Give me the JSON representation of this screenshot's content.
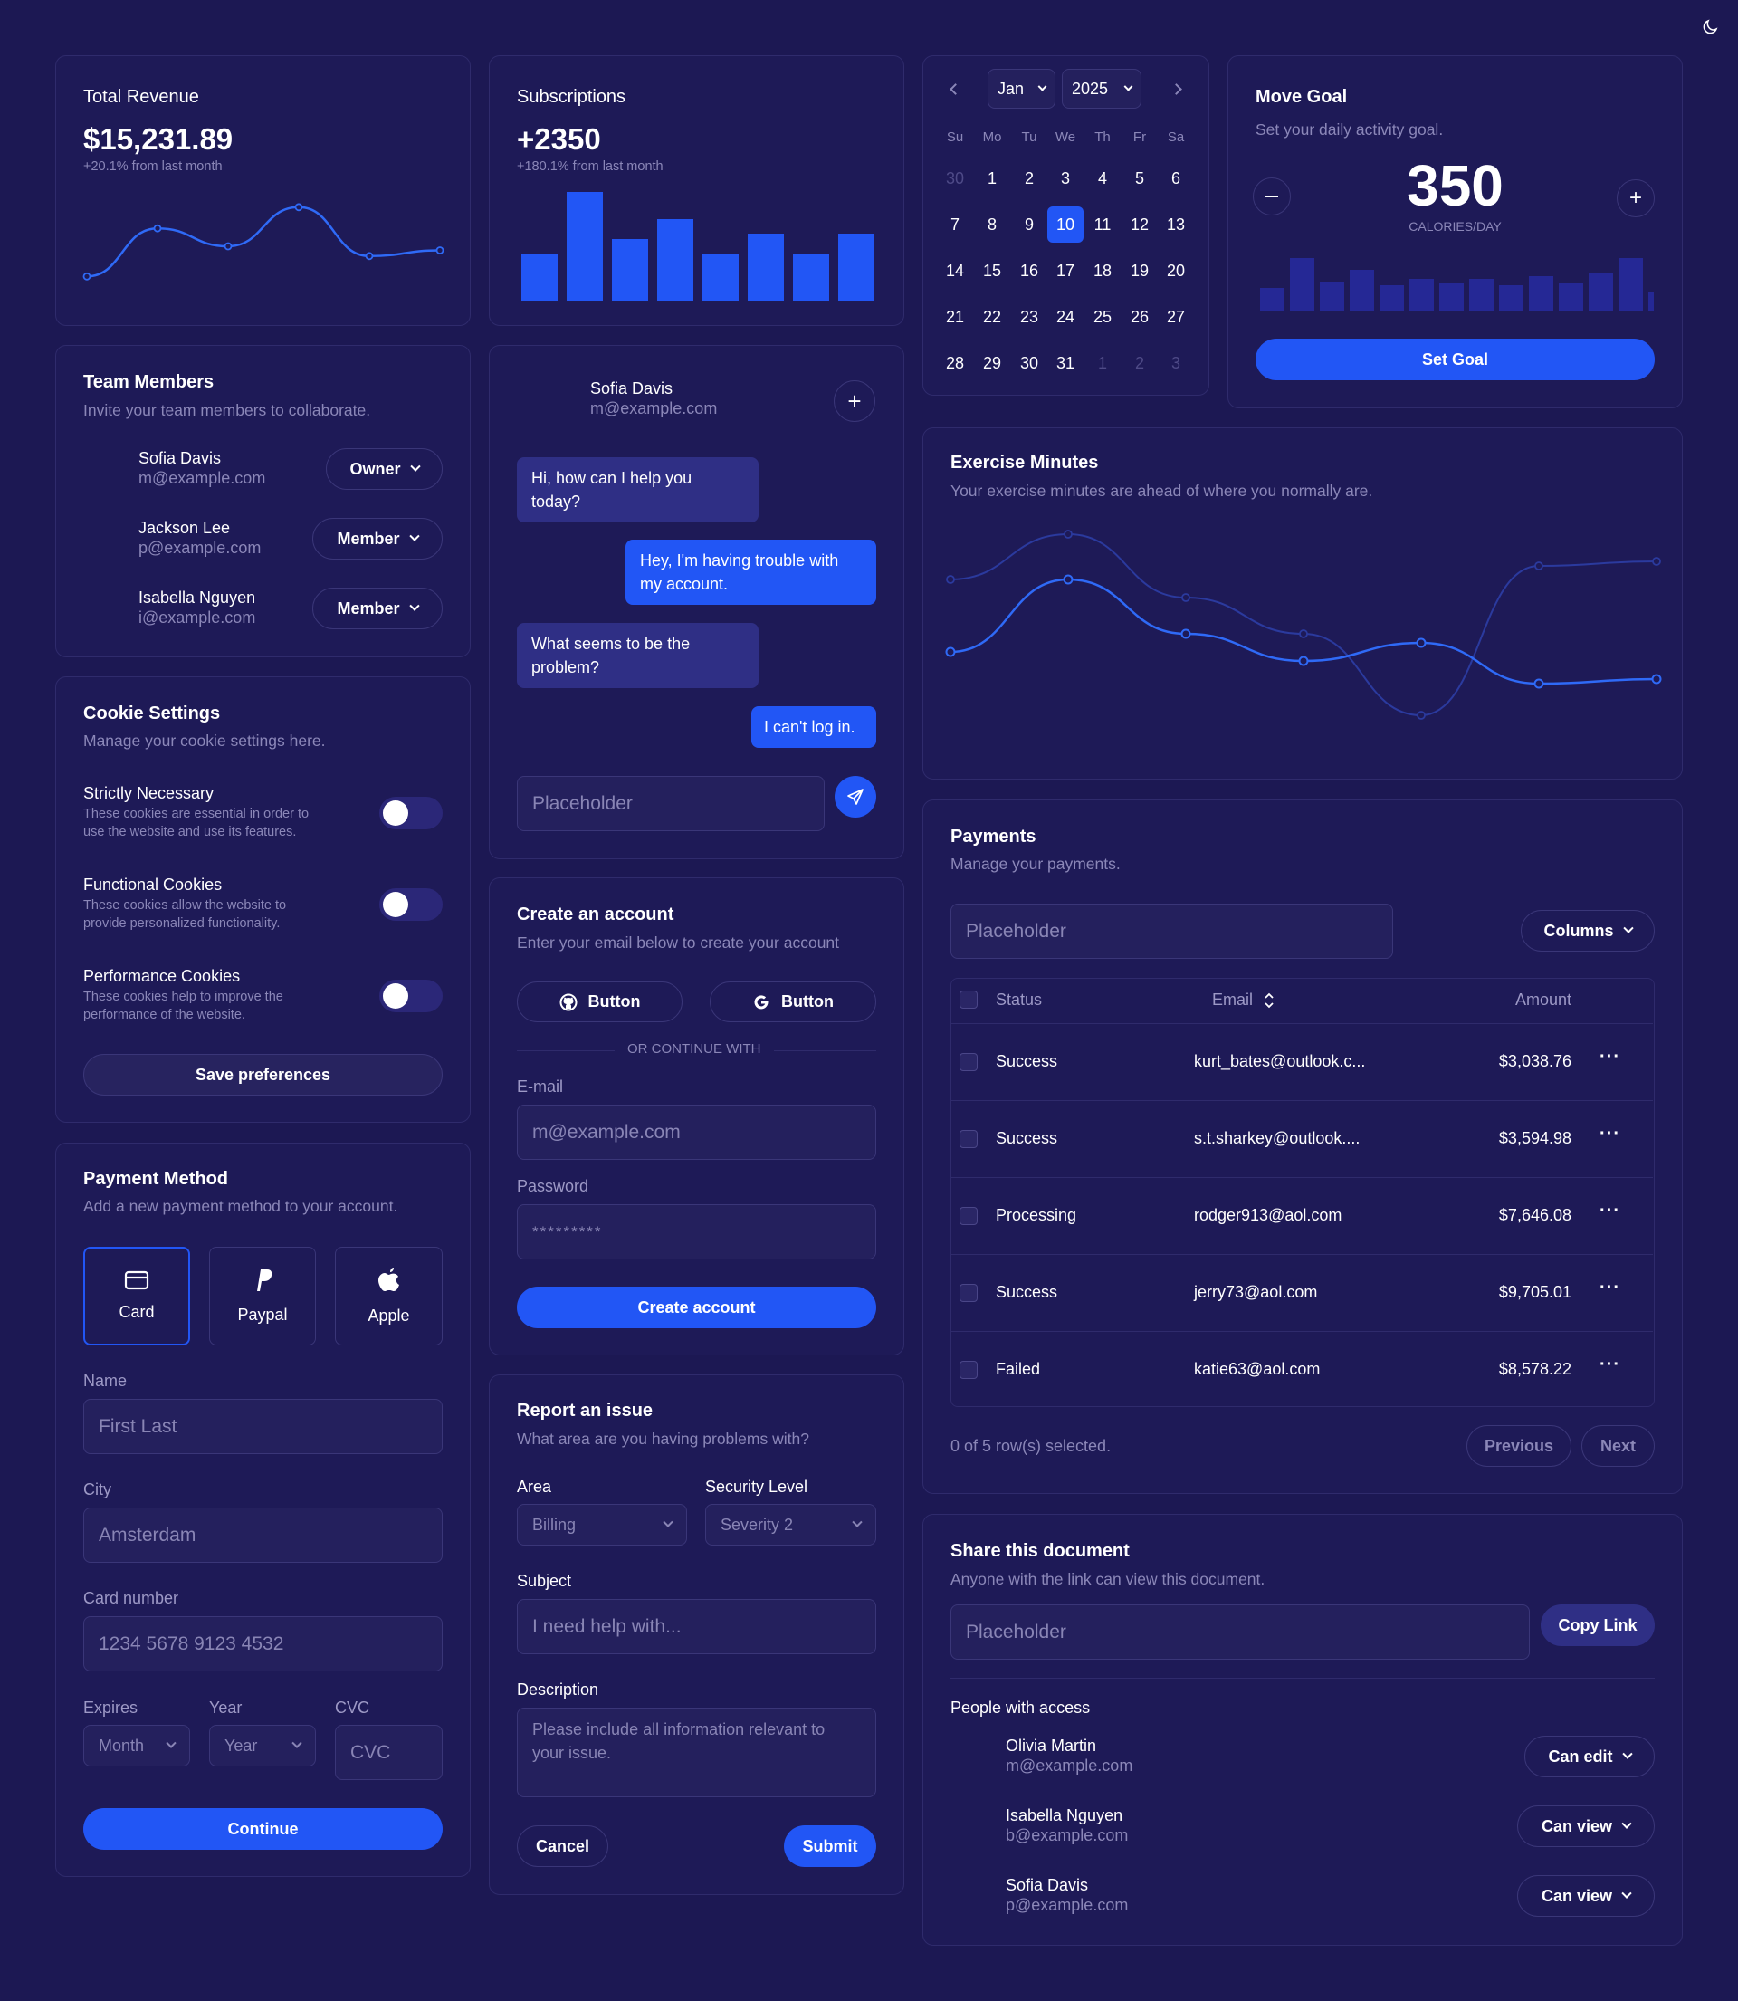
{
  "revenue": {
    "title": "Total Revenue",
    "value": "$15,231.89",
    "change": "+20.1% from last month",
    "line": [
      3,
      62,
      40,
      88,
      28,
      35
    ]
  },
  "subscriptions": {
    "title": "Subscriptions",
    "value": "+2350",
    "change": "+180.1% from last month",
    "bars": [
      52,
      120,
      68,
      90,
      52,
      74,
      52,
      74
    ]
  },
  "calendar": {
    "month": "Jan",
    "year": "2025",
    "weekdays": [
      "Su",
      "Mo",
      "Tu",
      "We",
      "Th",
      "Fr",
      "Sa"
    ],
    "weeks": [
      [
        "30",
        "1",
        "2",
        "3",
        "4",
        "5",
        "6"
      ],
      [
        "7",
        "8",
        "9",
        "10",
        "11",
        "12",
        "13"
      ],
      [
        "14",
        "15",
        "16",
        "17",
        "18",
        "19",
        "20"
      ],
      [
        "21",
        "22",
        "23",
        "24",
        "25",
        "26",
        "27"
      ],
      [
        "28",
        "29",
        "30",
        "31",
        "1",
        "2",
        "3"
      ]
    ],
    "selected": "10"
  },
  "goal": {
    "title": "Move Goal",
    "subtitle": "Set your daily activity goal.",
    "value": "350",
    "unit": "CALORIES/DAY",
    "button": "Set Goal",
    "bars": [
      25,
      58,
      32,
      45,
      28,
      35,
      30,
      35,
      28,
      38,
      30,
      42,
      58,
      20
    ]
  },
  "team": {
    "title": "Team Members",
    "subtitle": "Invite your team members to collaborate.",
    "members": [
      {
        "name": "Sofia Davis",
        "email": "m@example.com",
        "role": "Owner"
      },
      {
        "name": "Jackson Lee",
        "email": "p@example.com",
        "role": "Member"
      },
      {
        "name": "Isabella Nguyen",
        "email": "i@example.com",
        "role": "Member"
      }
    ]
  },
  "chat": {
    "name": "Sofia Davis",
    "email": "m@example.com",
    "messages": [
      {
        "text": "Hi, how can I help you today?",
        "from": "agent"
      },
      {
        "text": "Hey, I'm having trouble with my account.",
        "from": "user"
      },
      {
        "text": "What seems to be the problem?",
        "from": "agent"
      },
      {
        "text": "I can't log in.",
        "from": "user"
      }
    ],
    "placeholder": "Placeholder"
  },
  "exercise": {
    "title": "Exercise Minutes",
    "subtitle": "Your exercise minutes are ahead of where you normally are.",
    "series_a": [
      120,
      200,
      140,
      110,
      130,
      85,
      90
    ],
    "series_b": [
      200,
      250,
      180,
      140,
      50,
      215,
      220
    ]
  },
  "cookies": {
    "title": "Cookie Settings",
    "subtitle": "Manage your cookie settings here.",
    "items": [
      {
        "title": "Strictly Necessary",
        "desc1": "These cookies are essential in order to",
        "desc2": "use the website and use its features."
      },
      {
        "title": "Functional Cookies",
        "desc1": "These cookies allow the website to",
        "desc2": "provide personalized functionality."
      },
      {
        "title": "Performance Cookies",
        "desc1": "These cookies help to improve the",
        "desc2": "performance of the website."
      }
    ],
    "button": "Save preferences"
  },
  "account": {
    "title": "Create an account",
    "subtitle": "Enter your email below to create your account",
    "btn1": "Button",
    "btn2": "Button",
    "divider": "OR CONTINUE WITH",
    "email_label": "E-mail",
    "email_ph": "m@example.com",
    "pw_label": "Password",
    "pw_value": "*********",
    "button": "Create account"
  },
  "payments": {
    "title": "Payments",
    "subtitle": "Manage your payments.",
    "search_ph": "Placeholder",
    "columns_btn": "Columns",
    "headers": {
      "status": "Status",
      "email": "Email",
      "amount": "Amount"
    },
    "rows": [
      {
        "status": "Success",
        "email": "kurt_bates@outlook.c...",
        "amount": "$3,038.76"
      },
      {
        "status": "Success",
        "email": "s.t.sharkey@outlook....",
        "amount": "$3,594.98"
      },
      {
        "status": "Processing",
        "email": "rodger913@aol.com",
        "amount": "$7,646.08"
      },
      {
        "status": "Success",
        "email": "jerry73@aol.com",
        "amount": "$9,705.01"
      },
      {
        "status": "Failed",
        "email": "katie63@aol.com",
        "amount": "$8,578.22"
      }
    ],
    "selected": "0 of 5 row(s) selected.",
    "prev": "Previous",
    "next": "Next"
  },
  "paymethod": {
    "title": "Payment Method",
    "subtitle": "Add a new payment method to your account.",
    "options": [
      "Card",
      "Paypal",
      "Apple"
    ],
    "name_label": "Name",
    "name_ph": "First Last",
    "city_label": "City",
    "city_ph": "Amsterdam",
    "card_label": "Card number",
    "card_ph": "1234 5678 9123 4532",
    "exp_label": "Expires",
    "year_label": "Year",
    "cvc_label": "CVC",
    "month_ph": "Month",
    "year_ph": "Year",
    "cvc_ph": "CVC",
    "button": "Continue"
  },
  "issue": {
    "title": "Report an issue",
    "subtitle": "What area are you having problems with?",
    "area_label": "Area",
    "area_val": "Billing",
    "sec_label": "Security Level",
    "sec_val": "Severity 2",
    "subject_label": "Subject",
    "subject_ph": "I need help with...",
    "desc_label": "Description",
    "desc_ph": "Please include all information relevant to your issue.",
    "cancel": "Cancel",
    "submit": "Submit"
  },
  "share": {
    "title": "Share this document",
    "subtitle": "Anyone with the link can view this document.",
    "link_ph": "Placeholder",
    "copy": "Copy Link",
    "people_title": "People with access",
    "people": [
      {
        "name": "Olivia Martin",
        "email": "m@example.com",
        "perm": "Can edit"
      },
      {
        "name": "Isabella Nguyen",
        "email": "b@example.com",
        "perm": "Can view"
      },
      {
        "name": "Sofia Davis",
        "email": "p@example.com",
        "perm": "Can view"
      }
    ]
  }
}
